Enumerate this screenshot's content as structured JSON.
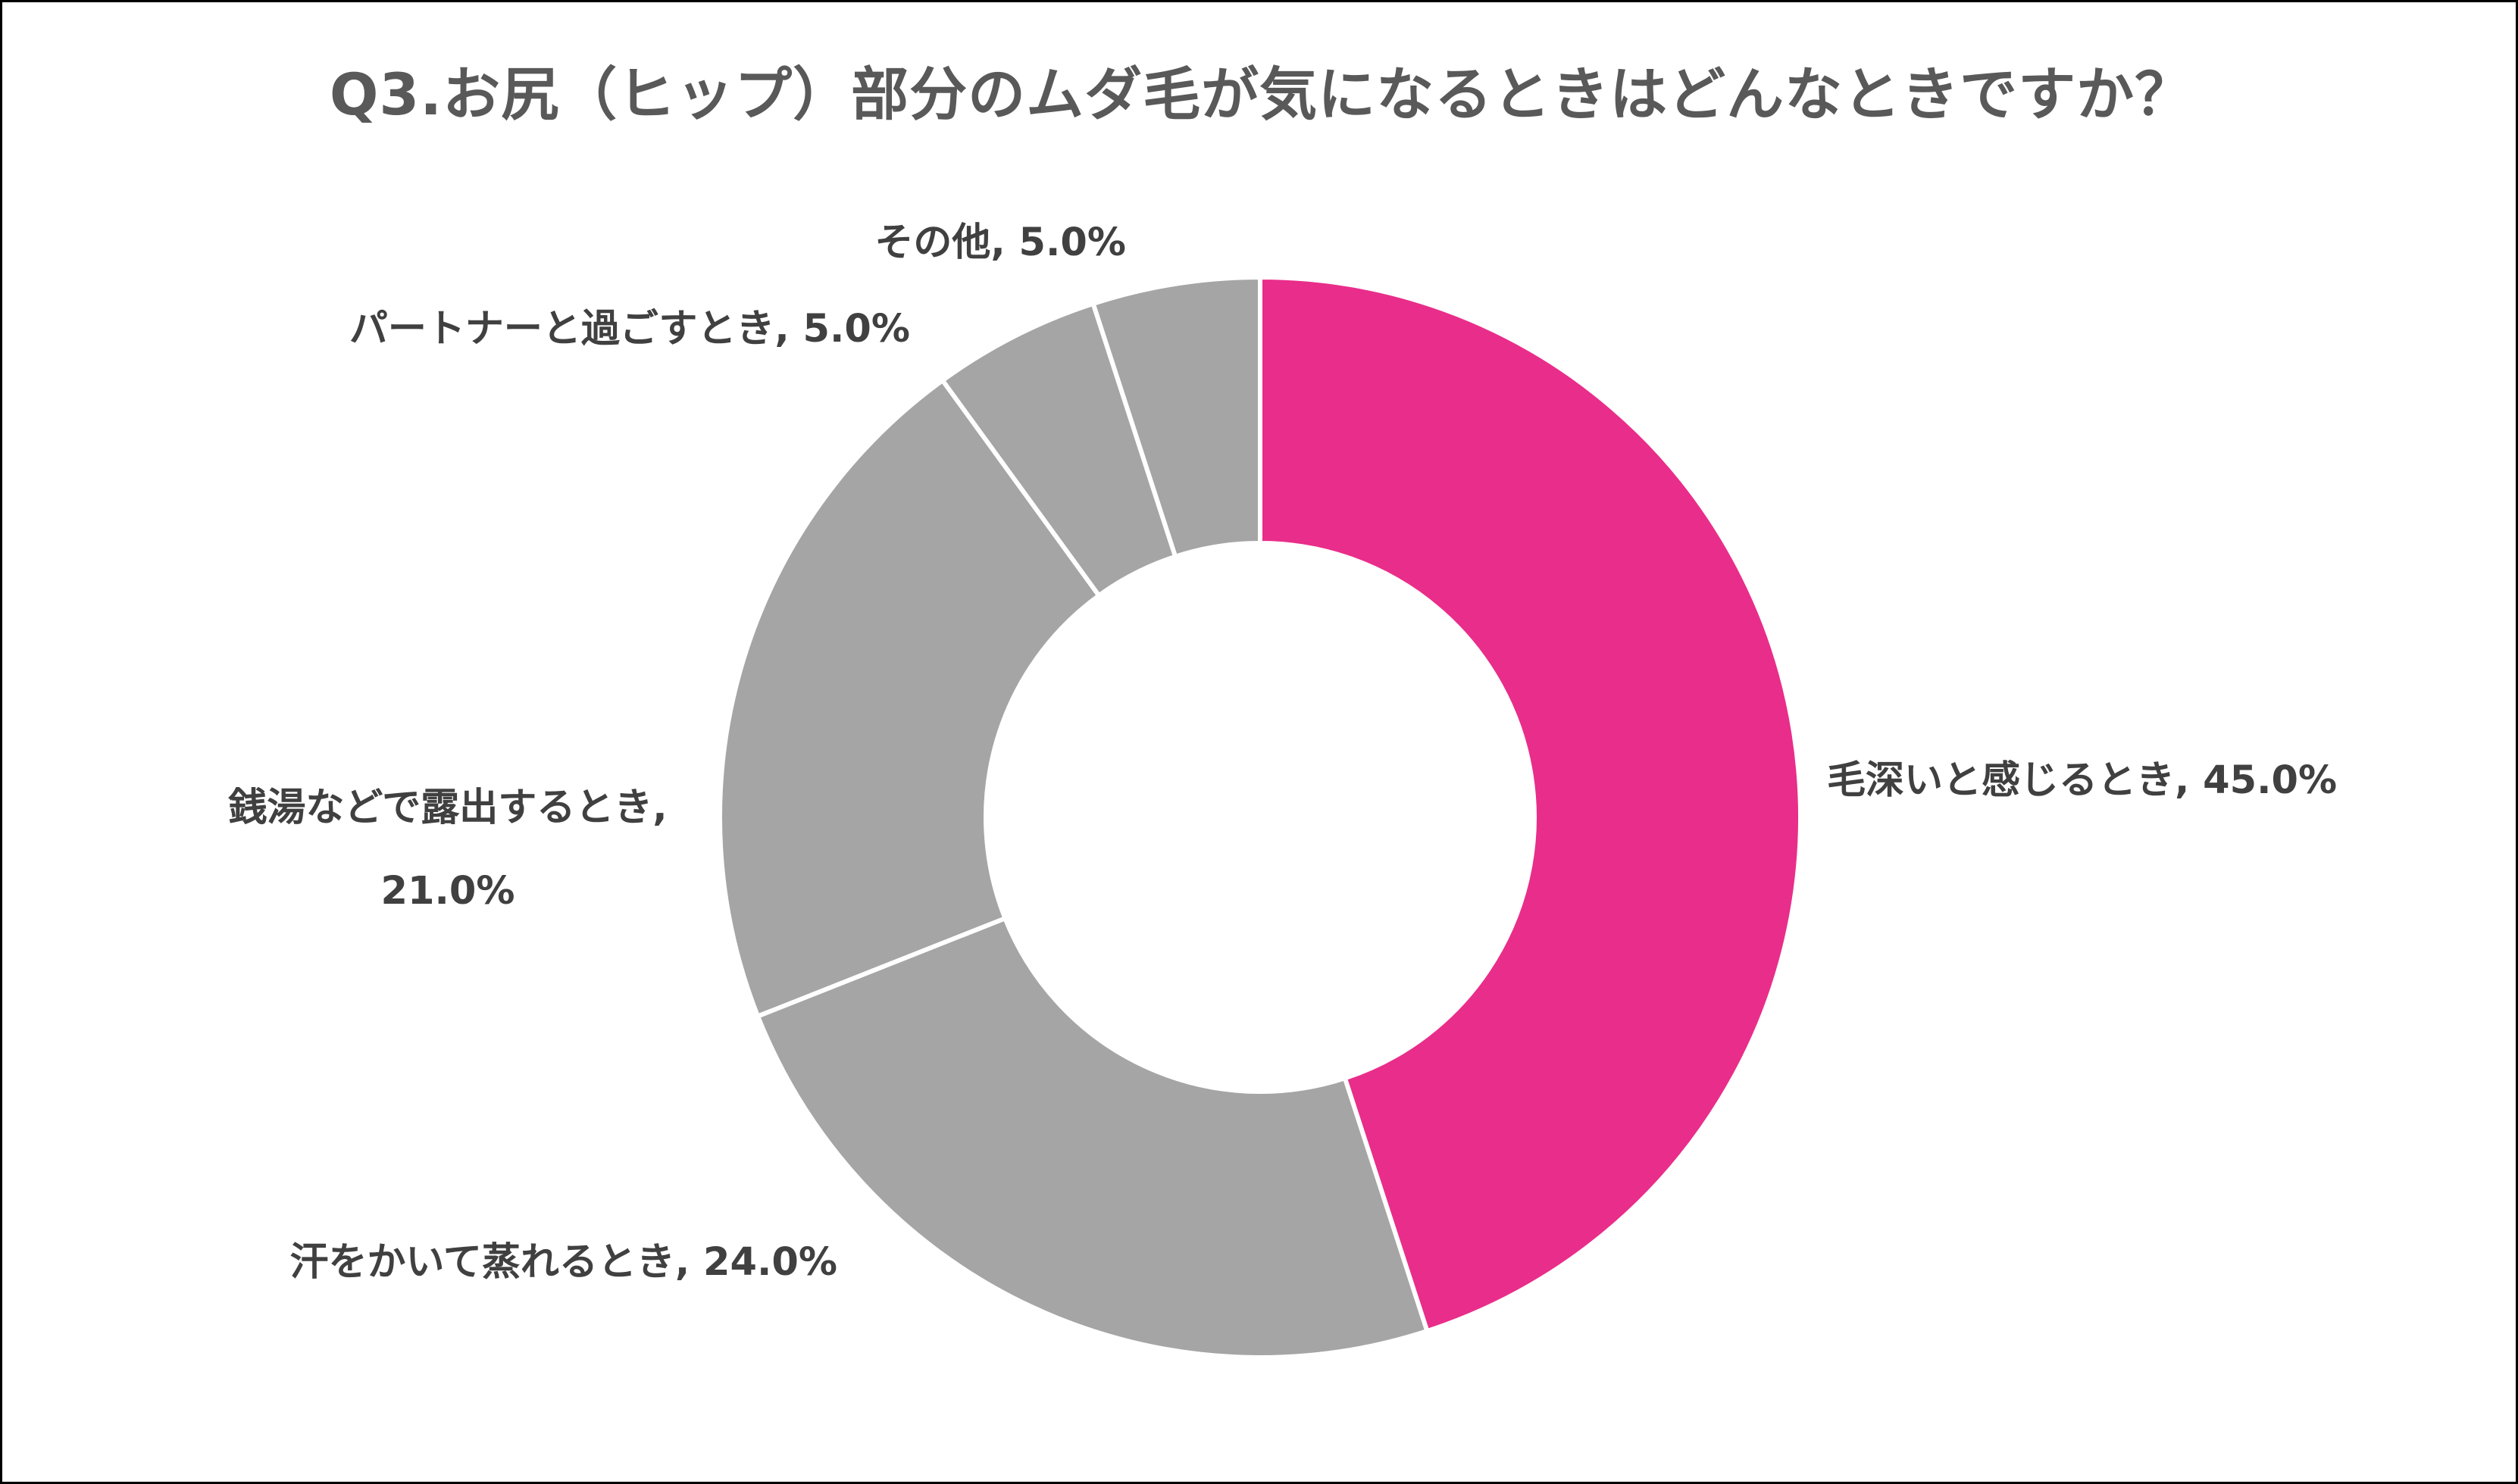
{
  "chart_data": {
    "type": "pie",
    "variant": "donut",
    "title": "Q3.お尻（ヒップ）部分のムダ毛が気になるときはどんなときですか？",
    "unit": "%",
    "slices": [
      {
        "category": "毛深いと感じるとき",
        "value": 45.0,
        "label": "毛深いと感じるとき, 45.0%",
        "color": "#E92D8A"
      },
      {
        "category": "汗をかいて蒸れるとき",
        "value": 24.0,
        "label": "汗をかいて蒸れるとき, 24.0%",
        "color": "#A5A5A5"
      },
      {
        "category": "銭湯などで露出するとき",
        "value": 21.0,
        "label": "銭湯などで露出するとき, 21.0%",
        "label_lines": [
          "銭湯などで露出するとき,",
          "21.0%"
        ],
        "color": "#A5A5A5"
      },
      {
        "category": "パートナーと過ごすとき",
        "value": 5.0,
        "label": "パートナーと過ごすとき, 5.0%",
        "color": "#A5A5A5"
      },
      {
        "category": "その他",
        "value": 5.0,
        "label": "その他, 5.0%",
        "color": "#A5A5A5"
      }
    ],
    "legend": "none",
    "start_angle": "12 o'clock",
    "direction": "clockwise"
  }
}
